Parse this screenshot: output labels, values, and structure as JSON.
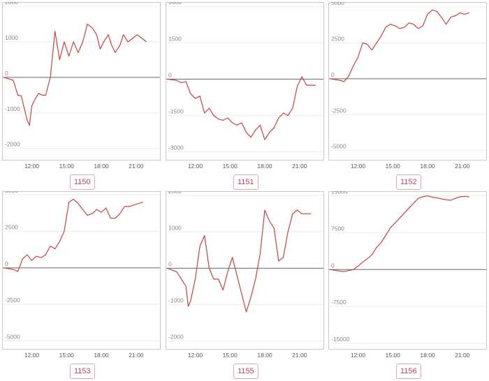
{
  "accent_color": "#c8423f",
  "badge_color": "#c2455f",
  "chart_data": [
    {
      "type": "line",
      "label": "1150",
      "ylim": [
        -2300,
        2100
      ],
      "y_ticks": [
        2000,
        1000,
        0,
        -1000,
        -2000
      ],
      "x_tick_labels": [
        "12:00",
        "15:00",
        "18:00",
        "21:00"
      ],
      "x_tick_hours": [
        12,
        15,
        18,
        21
      ],
      "xlim": [
        9.5,
        23
      ],
      "grid": true,
      "x": [
        9.6,
        10.4,
        10.8,
        11.1,
        11.3,
        11.6,
        11.8,
        12.0,
        12.3,
        12.6,
        12.9,
        13.2,
        13.6,
        14.0,
        14.4,
        14.8,
        15.2,
        15.6,
        16.0,
        16.4,
        16.8,
        17.2,
        17.6,
        17.9,
        18.2,
        18.6,
        18.9,
        19.2,
        19.6,
        19.9,
        20.3,
        20.7,
        21.1,
        21.5,
        21.9
      ],
      "y": [
        0,
        -80,
        -500,
        -520,
        -800,
        -1200,
        -1350,
        -800,
        -600,
        -450,
        -500,
        -500,
        0,
        1300,
        500,
        1000,
        600,
        1000,
        700,
        1000,
        1500,
        1400,
        1200,
        800,
        1000,
        1200,
        900,
        700,
        900,
        1200,
        1000,
        1100,
        1200,
        1100,
        1000
      ]
    },
    {
      "type": "line",
      "label": "1151",
      "ylim": [
        -3300,
        3150
      ],
      "y_ticks": [
        3000,
        1500,
        0,
        -1500,
        -3000
      ],
      "x_tick_labels": [
        "12:00",
        "15:00",
        "18:00",
        "21:00"
      ],
      "x_tick_hours": [
        12,
        15,
        18,
        21
      ],
      "xlim": [
        9.5,
        23
      ],
      "grid": true,
      "x": [
        9.6,
        10.4,
        10.8,
        11.2,
        11.6,
        12.0,
        12.4,
        12.8,
        13.2,
        13.6,
        14.0,
        14.4,
        14.8,
        15.2,
        15.6,
        16.0,
        16.4,
        16.8,
        17.2,
        17.6,
        18.0,
        18.4,
        18.8,
        19.2,
        19.6,
        20.0,
        20.4,
        20.8,
        21.2,
        21.6,
        22.0,
        22.4
      ],
      "y": [
        0,
        -50,
        -150,
        -100,
        -600,
        -800,
        -700,
        -1400,
        -1200,
        -1500,
        -1650,
        -1700,
        -1600,
        -1800,
        -1900,
        -1800,
        -2200,
        -2400,
        -2100,
        -1900,
        -2500,
        -2200,
        -2000,
        -1600,
        -1400,
        -1500,
        -1200,
        -300,
        100,
        -250,
        -250,
        -250
      ]
    },
    {
      "type": "line",
      "label": "1152",
      "ylim": [
        -5600,
        5300
      ],
      "y_ticks": [
        5000,
        2500,
        0,
        -2500,
        -5000
      ],
      "x_tick_labels": [
        "12:00",
        "15:00",
        "18:00",
        "21:00"
      ],
      "x_tick_hours": [
        12,
        15,
        18,
        21
      ],
      "xlim": [
        9.5,
        23
      ],
      "grid": true,
      "x": [
        9.6,
        10.4,
        10.8,
        11.2,
        11.6,
        12.0,
        12.4,
        12.8,
        13.2,
        13.6,
        14.0,
        14.4,
        14.8,
        15.2,
        15.6,
        16.0,
        16.4,
        16.8,
        17.2,
        17.6,
        18.0,
        18.4,
        18.8,
        19.2,
        19.6,
        20.0,
        20.4,
        20.8,
        21.2,
        21.6
      ],
      "y": [
        0,
        -100,
        -200,
        200,
        900,
        1500,
        2500,
        2400,
        2000,
        2500,
        3000,
        3600,
        3800,
        3700,
        3500,
        3600,
        3900,
        3800,
        3500,
        3700,
        4500,
        4800,
        4700,
        4300,
        3800,
        4300,
        4400,
        4600,
        4500,
        4600
      ]
    },
    {
      "type": "line",
      "label": "1153",
      "ylim": [
        -5500,
        5200
      ],
      "y_ticks": [
        5000,
        2500,
        0,
        -2500,
        -5000
      ],
      "x_tick_labels": [
        "12:00",
        "15:00",
        "18:00",
        "21:00"
      ],
      "x_tick_hours": [
        12,
        15,
        18,
        21
      ],
      "xlim": [
        9.5,
        23
      ],
      "grid": true,
      "x": [
        9.6,
        10.4,
        10.8,
        11.2,
        11.6,
        12.0,
        12.4,
        12.8,
        13.2,
        13.6,
        14.0,
        14.4,
        14.8,
        15.2,
        15.6,
        16.0,
        16.4,
        16.8,
        17.2,
        17.6,
        18.0,
        18.4,
        18.8,
        19.2,
        19.6,
        20.0,
        20.4,
        20.8,
        21.2,
        21.6
      ],
      "y": [
        0,
        -100,
        -250,
        600,
        900,
        500,
        800,
        700,
        900,
        1500,
        1300,
        1800,
        2500,
        4500,
        4700,
        4400,
        4000,
        3600,
        3700,
        4000,
        3800,
        4100,
        3400,
        3400,
        3700,
        4200,
        4200,
        4300,
        4400,
        4500
      ],
      "note_series_line": true
    },
    {
      "type": "line",
      "label": "1155",
      "ylim": [
        -2200,
        2100
      ],
      "y_ticks": [
        2000,
        1000,
        0,
        -1000,
        -2000
      ],
      "x_tick_labels": [
        "12:00",
        "15:00",
        "18:00",
        "21:00"
      ],
      "x_tick_hours": [
        12,
        15,
        18,
        21
      ],
      "xlim": [
        9.5,
        23
      ],
      "grid": true,
      "x": [
        9.6,
        10.4,
        10.8,
        11.2,
        11.4,
        11.6,
        12.0,
        12.4,
        12.8,
        13.2,
        13.6,
        14.0,
        14.4,
        14.8,
        15.2,
        15.6,
        16.0,
        16.4,
        16.8,
        17.2,
        17.6,
        18.0,
        18.4,
        18.8,
        19.2,
        19.6,
        20.0,
        20.4,
        20.8,
        21.2,
        21.6,
        22.0
      ],
      "y": [
        0,
        -100,
        -300,
        -500,
        -1050,
        -900,
        -300,
        600,
        900,
        0,
        -300,
        -300,
        -600,
        -100,
        300,
        -200,
        -700,
        -1200,
        -800,
        -300,
        400,
        1600,
        1300,
        1100,
        200,
        300,
        1000,
        1500,
        1600,
        1500,
        1500,
        1500
      ]
    },
    {
      "type": "line",
      "label": "1156",
      "ylim": [
        -16000,
        15800
      ],
      "y_ticks": [
        15000,
        7500,
        0,
        -7500,
        -15000
      ],
      "x_tick_labels": [
        "12:00",
        "15:00",
        "18:00",
        "21:00"
      ],
      "x_tick_hours": [
        12,
        15,
        18,
        21
      ],
      "xlim": [
        9.5,
        23
      ],
      "grid": true,
      "x": [
        9.6,
        10.4,
        10.8,
        11.2,
        11.6,
        12.0,
        12.4,
        12.8,
        13.2,
        13.6,
        14.0,
        14.4,
        14.8,
        15.2,
        15.6,
        16.0,
        16.4,
        16.8,
        17.2,
        17.6,
        18.0,
        18.4,
        18.8,
        19.2,
        19.6,
        20.0,
        20.4,
        20.8,
        21.2,
        21.6
      ],
      "y": [
        0,
        -300,
        -400,
        -200,
        0,
        700,
        1500,
        2200,
        3000,
        4500,
        5500,
        7000,
        8500,
        9500,
        10500,
        11500,
        12500,
        13500,
        14500,
        14800,
        15000,
        14700,
        14600,
        14400,
        14200,
        14100,
        14500,
        14800,
        14900,
        14800
      ]
    }
  ]
}
